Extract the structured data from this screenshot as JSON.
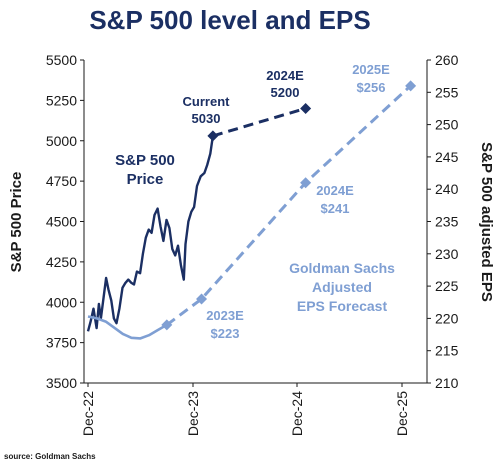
{
  "chart_data": {
    "type": "line",
    "title": "S&P 500 level and EPS",
    "x_ticks": [
      "Dec-22",
      "Dec-23",
      "Dec-24",
      "Dec-25"
    ],
    "y_left": {
      "label": "S&P 500 Price",
      "range": [
        3500,
        5500
      ],
      "ticks": [
        3500,
        3750,
        4000,
        4250,
        4500,
        4750,
        5000,
        5250,
        5500
      ]
    },
    "y_right": {
      "label": "S&P 500 adjusted EPS",
      "range": [
        210,
        260
      ],
      "ticks": [
        210,
        215,
        220,
        225,
        230,
        235,
        240,
        245,
        250,
        255,
        260
      ]
    },
    "grid": false,
    "series": [
      {
        "name": "S&P 500 Price",
        "axis": "left",
        "style": "solid",
        "color": "#1b2f63",
        "points": [
          [
            "2022-12-01",
            3820
          ],
          [
            "2022-12-10",
            3880
          ],
          [
            "2022-12-20",
            3960
          ],
          [
            "2022-12-31",
            3840
          ],
          [
            "2023-01-08",
            3990
          ],
          [
            "2023-01-15",
            3900
          ],
          [
            "2023-01-25",
            4040
          ],
          [
            "2023-02-02",
            4150
          ],
          [
            "2023-02-10",
            4080
          ],
          [
            "2023-02-20",
            4010
          ],
          [
            "2023-03-01",
            3900
          ],
          [
            "2023-03-10",
            3870
          ],
          [
            "2023-03-20",
            3960
          ],
          [
            "2023-03-31",
            4090
          ],
          [
            "2023-04-10",
            4120
          ],
          [
            "2023-04-20",
            4140
          ],
          [
            "2023-05-01",
            4120
          ],
          [
            "2023-05-10",
            4110
          ],
          [
            "2023-05-20",
            4190
          ],
          [
            "2023-05-31",
            4180
          ],
          [
            "2023-06-10",
            4300
          ],
          [
            "2023-06-20",
            4400
          ],
          [
            "2023-06-30",
            4450
          ],
          [
            "2023-07-10",
            4430
          ],
          [
            "2023-07-20",
            4540
          ],
          [
            "2023-07-31",
            4580
          ],
          [
            "2023-08-10",
            4470
          ],
          [
            "2023-08-20",
            4380
          ],
          [
            "2023-08-31",
            4510
          ],
          [
            "2023-09-10",
            4460
          ],
          [
            "2023-09-20",
            4330
          ],
          [
            "2023-09-30",
            4290
          ],
          [
            "2023-10-10",
            4350
          ],
          [
            "2023-10-20",
            4230
          ],
          [
            "2023-10-30",
            4140
          ],
          [
            "2023-11-05",
            4360
          ],
          [
            "2023-11-15",
            4500
          ],
          [
            "2023-11-25",
            4560
          ],
          [
            "2023-12-05",
            4590
          ],
          [
            "2023-12-15",
            4720
          ],
          [
            "2023-12-28",
            4780
          ],
          [
            "2024-01-10",
            4800
          ],
          [
            "2024-01-20",
            4850
          ],
          [
            "2024-01-31",
            4920
          ],
          [
            "2024-02-09",
            5030
          ]
        ]
      },
      {
        "name": "S&P 500 forecast",
        "axis": "left",
        "style": "dashed",
        "color": "#1b2f63",
        "points": [
          [
            "2024-02-09",
            5030
          ],
          [
            "2024-12-31",
            5200
          ]
        ]
      },
      {
        "name": "Adjusted EPS",
        "axis": "right",
        "style": "solid",
        "color": "#7f9fd3",
        "points": [
          [
            "2022-12-01",
            220.3
          ],
          [
            "2023-01-01",
            220.0
          ],
          [
            "2023-02-01",
            219.5
          ],
          [
            "2023-03-01",
            218.6
          ],
          [
            "2023-04-01",
            217.6
          ],
          [
            "2023-05-01",
            217.0
          ],
          [
            "2023-06-01",
            216.9
          ],
          [
            "2023-07-01",
            217.4
          ],
          [
            "2023-08-01",
            218.2
          ],
          [
            "2023-09-01",
            219.0
          ]
        ]
      },
      {
        "name": "Goldman Sachs Adjusted EPS Forecast",
        "axis": "right",
        "style": "dashed",
        "color": "#7f9fd3",
        "points": [
          [
            "2023-09-01",
            219.0
          ],
          [
            "2023-12-31",
            223
          ],
          [
            "2024-12-31",
            241
          ],
          [
            "2025-12-31",
            256
          ]
        ]
      }
    ],
    "markers": [
      {
        "series": "left",
        "x": "2024-02-09",
        "y": 5030,
        "color": "#1b2f63"
      },
      {
        "series": "left",
        "x": "2024-12-31",
        "y": 5200,
        "color": "#1b2f63"
      },
      {
        "series": "right",
        "x": "2023-09-01",
        "y": 219.0,
        "color": "#7f9fd3"
      },
      {
        "series": "right",
        "x": "2023-12-31",
        "y": 223,
        "color": "#7f9fd3"
      },
      {
        "series": "right",
        "x": "2024-12-31",
        "y": 241,
        "color": "#7f9fd3"
      },
      {
        "series": "right",
        "x": "2025-12-31",
        "y": 256,
        "color": "#7f9fd3"
      }
    ],
    "annotations": [
      {
        "id": "current",
        "lines": [
          "Current",
          "5030"
        ],
        "style": "dark"
      },
      {
        "id": "sp2024",
        "lines": [
          "2024E",
          "5200"
        ],
        "style": "dark"
      },
      {
        "id": "sp_label",
        "lines": [
          "S&P 500",
          "Price"
        ],
        "style": "dark-big"
      },
      {
        "id": "eps2023",
        "lines": [
          "2023E",
          "$223"
        ],
        "style": "light"
      },
      {
        "id": "eps2024",
        "lines": [
          "2024E",
          "$241"
        ],
        "style": "light"
      },
      {
        "id": "eps2025",
        "lines": [
          "2025E",
          "$256"
        ],
        "style": "light"
      },
      {
        "id": "gs_label",
        "lines": [
          "Goldman Sachs",
          "Adjusted",
          "EPS Forecast"
        ],
        "style": "light-big"
      }
    ],
    "source": "source: Goldman Sachs"
  }
}
